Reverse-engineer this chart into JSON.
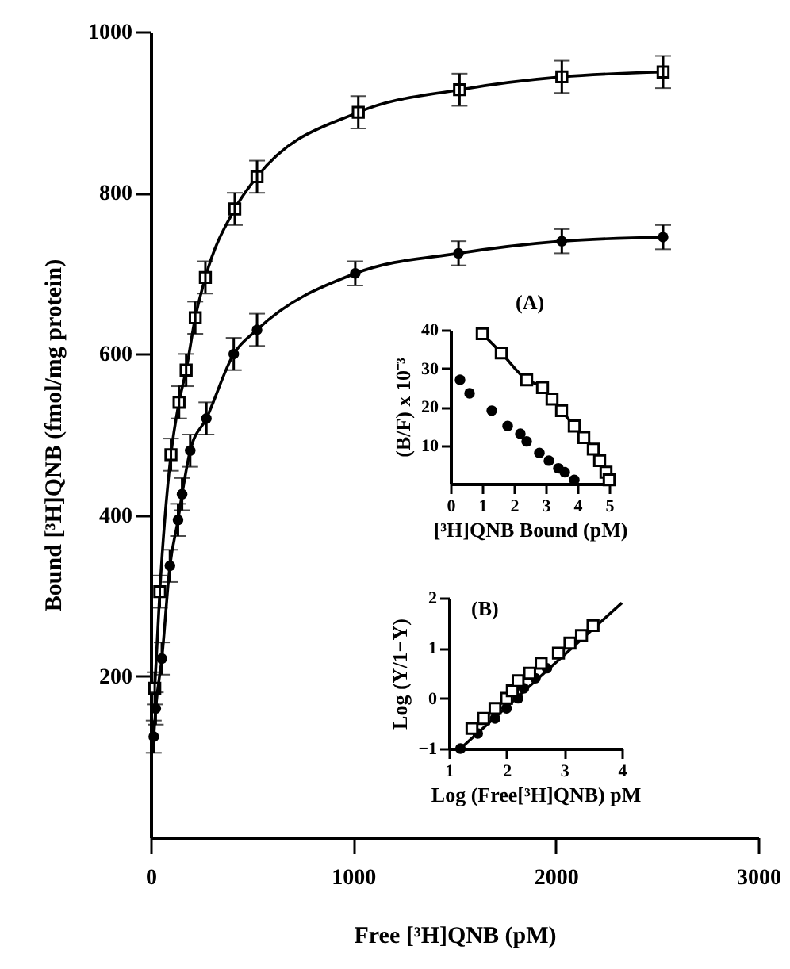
{
  "chart_data": [
    {
      "type": "line",
      "xlabel": "Free [³H]QNB (pM)",
      "ylabel": "Bound [³H]QNB (fmol/mg protein)",
      "xlim": [
        0,
        3000
      ],
      "xticks": [
        0,
        1000,
        2000,
        3000
      ],
      "ylim": [
        0,
        1000
      ],
      "yticks": [
        200,
        400,
        600,
        800,
        1000
      ],
      "grid": false,
      "legend": false,
      "series": [
        {
          "color": "#000000",
          "marker": "square",
          "x": [
            20,
            45,
            100,
            140,
            175,
            220,
            270,
            415,
            525,
            1025,
            1525,
            2030,
            2530
          ],
          "values": [
            185,
            305,
            475,
            540,
            580,
            645,
            695,
            780,
            820,
            900,
            928,
            944,
            950
          ],
          "errors": [
            20,
            20,
            20,
            20,
            20,
            20,
            20,
            20,
            20,
            20,
            20,
            20,
            20
          ]
        },
        {
          "color": "#000000",
          "marker": "circle",
          "x": [
            15,
            25,
            55,
            95,
            135,
            155,
            195,
            275,
            410,
            525,
            1010,
            1520,
            2030,
            2530
          ],
          "values": [
            125,
            160,
            222,
            337,
            394,
            426,
            480,
            520,
            600,
            630,
            700,
            725,
            740,
            745
          ],
          "errors": [
            20,
            20,
            20,
            20,
            20,
            20,
            20,
            20,
            20,
            20,
            15,
            15,
            15,
            15
          ]
        }
      ]
    },
    {
      "type": "line",
      "title": "(A)",
      "xlabel": "[³H]QNB Bound (pM)",
      "ylabel": "(B/F) x 10⁻³",
      "xlim": [
        0,
        5
      ],
      "xticks": [
        0,
        1,
        2,
        3,
        4,
        5
      ],
      "ylim": [
        0,
        40
      ],
      "yticks": [
        10,
        20,
        30,
        40
      ],
      "grid": false,
      "legend": false,
      "series": [
        {
          "color": "#000000",
          "marker": "square",
          "x": [
            1.0,
            1.6,
            2.4,
            2.9,
            3.2,
            3.5,
            3.9,
            4.2,
            4.5,
            4.7,
            4.9,
            5.0
          ],
          "values": [
            39,
            34,
            27,
            25,
            22,
            19,
            15,
            12,
            9,
            6,
            3,
            1
          ]
        },
        {
          "type": "scatter",
          "color": "#000000",
          "marker": "circle",
          "x": [
            0.3,
            0.6,
            1.3,
            1.8,
            2.2,
            2.4,
            2.8,
            3.1,
            3.4,
            3.6,
            3.9
          ],
          "values": [
            27,
            23.5,
            19,
            15,
            13,
            11,
            8,
            6,
            4,
            3,
            1
          ]
        }
      ]
    },
    {
      "type": "scatter",
      "title": "(B)",
      "xlabel": "Log (Free[³H]QNB) pM",
      "ylabel": "Log (Y/1−Y)",
      "xlim": [
        1,
        4
      ],
      "xticks": [
        1,
        2,
        3,
        4
      ],
      "ylim": [
        -1,
        2
      ],
      "yticks": [
        -1,
        0,
        1,
        2
      ],
      "grid": false,
      "legend": false,
      "series": [
        {
          "type": "line",
          "color": "#000000",
          "marker": "none",
          "x": [
            1.2,
            4.0
          ],
          "values": [
            -1,
            1.9
          ]
        },
        {
          "color": "#000000",
          "marker": "circle",
          "x": [
            1.2,
            1.5,
            1.8,
            2.0,
            2.2,
            2.3,
            2.5,
            2.7
          ],
          "values": [
            -1,
            -0.7,
            -0.4,
            -0.2,
            0,
            0.2,
            0.4,
            0.6
          ]
        },
        {
          "color": "#000000",
          "marker": "square",
          "x": [
            1.4,
            1.6,
            1.8,
            2.0,
            2.1,
            2.2,
            2.4,
            2.6,
            2.9,
            3.1,
            3.3,
            3.5
          ],
          "values": [
            -0.6,
            -0.4,
            -0.2,
            0,
            0.15,
            0.35,
            0.5,
            0.7,
            0.9,
            1.1,
            1.25,
            1.45
          ]
        }
      ]
    }
  ]
}
